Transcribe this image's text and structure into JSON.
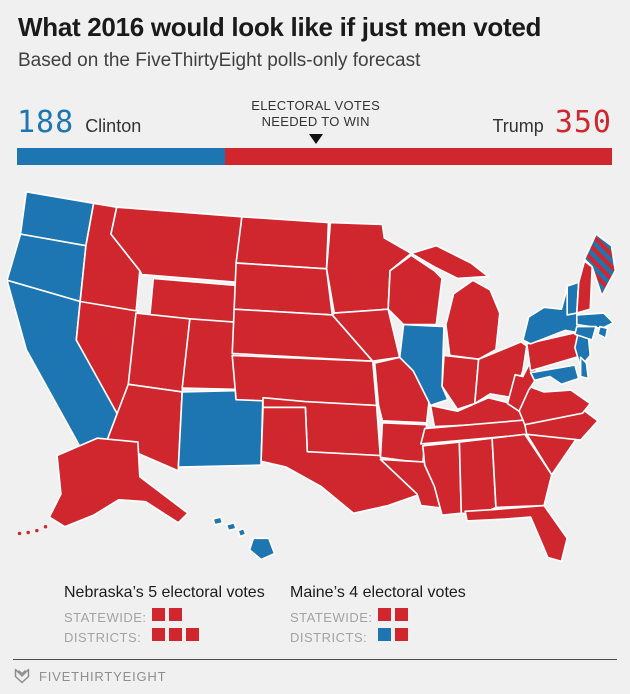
{
  "header": {
    "title": "What 2016 would look like if just men voted",
    "subtitle": "Based on the FiveThirtyEight polls-only forecast"
  },
  "bar": {
    "clinton_pct": 34.9,
    "marker_pct": 50.2,
    "marker_label_line1": "ELECTORAL VOTES",
    "marker_label_line2": "NEEDED TO WIN",
    "marker_icon": "down-triangle-icon"
  },
  "map_meta": {
    "stroke_color": "#ffffff",
    "background_color": "#f0f0f0",
    "maine_note": "striped red and blue"
  },
  "chart_data": [
    {
      "type": "bar",
      "title": "Electoral vote totals",
      "series": [
        {
          "name": "Clinton",
          "value": 188
        },
        {
          "name": "Trump",
          "value": 350
        }
      ],
      "marker_label": "ELECTORAL VOTES NEEDED TO WIN",
      "marker_position_pct": 50.2,
      "legend_position": "above-bar"
    },
    {
      "type": "choropleth",
      "region": "United States",
      "colors": {
        "Clinton": "#1d76b2",
        "Trump": "#d0272e"
      },
      "winner_by_state": {
        "WA": "Clinton",
        "OR": "Clinton",
        "CA": "Clinton",
        "NV": "Trump",
        "ID": "Trump",
        "MT": "Trump",
        "WY": "Trump",
        "UT": "Trump",
        "CO": "Trump",
        "AZ": "Trump",
        "NM": "Clinton",
        "ND": "Trump",
        "SD": "Trump",
        "NE": "Trump",
        "KS": "Trump",
        "OK": "Trump",
        "TX": "Trump",
        "MN": "Trump",
        "IA": "Trump",
        "MO": "Trump",
        "AR": "Trump",
        "LA": "Trump",
        "WI": "Trump",
        "MI": "Trump",
        "IL": "Clinton",
        "IN": "Trump",
        "OH": "Trump",
        "KY": "Trump",
        "TN": "Trump",
        "MS": "Trump",
        "AL": "Trump",
        "GA": "Trump",
        "FL": "Trump",
        "SC": "Trump",
        "NC": "Trump",
        "VA": "Trump",
        "WV": "Trump",
        "PA": "Trump",
        "NY": "Clinton",
        "NJ": "Clinton",
        "MD": "Clinton",
        "DE": "Clinton",
        "VT": "Clinton",
        "NH": "Trump",
        "ME": "split",
        "MA": "Clinton",
        "CT": "Clinton",
        "RI": "Clinton",
        "AK": "Trump",
        "HI": "Clinton"
      }
    }
  ],
  "legend": {
    "nebraska": {
      "title": "Nebraska’s 5 electoral votes",
      "rows": [
        {
          "label": "STATEWIDE:",
          "squares": [
            "R",
            "R"
          ]
        },
        {
          "label": "DISTRICTS:",
          "squares": [
            "R",
            "R",
            "R"
          ]
        }
      ]
    },
    "maine": {
      "title": "Maine’s 4 electoral votes",
      "rows": [
        {
          "label": "STATEWIDE:",
          "squares": [
            "R",
            "R"
          ]
        },
        {
          "label": "DISTRICTS:",
          "squares": [
            "D",
            "R"
          ]
        }
      ]
    }
  },
  "footer": {
    "brand": "FIVETHIRTYEIGHT",
    "logo": "fox-icon"
  }
}
